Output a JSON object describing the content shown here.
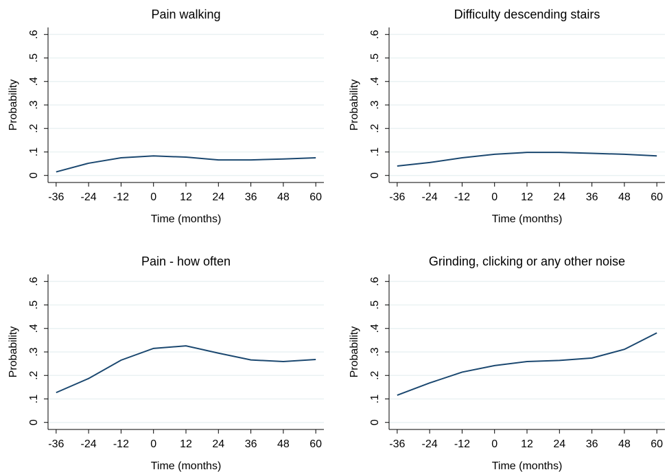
{
  "chart_data": [
    {
      "type": "line",
      "title": "Pain walking",
      "xlabel": "Time (months)",
      "ylabel": "Probability",
      "x": [
        -36,
        -24,
        -12,
        0,
        12,
        24,
        36,
        48,
        60
      ],
      "values": [
        0.015,
        0.052,
        0.075,
        0.083,
        0.078,
        0.066,
        0.066,
        0.07,
        0.075
      ],
      "color": "#1a476f",
      "grid": true,
      "xlim": [
        -39,
        63
      ],
      "xticks": [
        -36,
        -24,
        -12,
        0,
        12,
        24,
        36,
        48,
        60
      ],
      "ylim": [
        -0.03,
        0.63
      ],
      "yticks": [
        0,
        {
          "value": 0.1,
          "label": ".1"
        },
        {
          "value": 0.2,
          "label": ".2"
        },
        {
          "value": 0.3,
          "label": ".3"
        },
        {
          "value": 0.4,
          "label": ".4"
        },
        {
          "value": 0.5,
          "label": ".5"
        },
        {
          "value": 0.6,
          "label": ".6"
        }
      ]
    },
    {
      "type": "line",
      "title": "Difficulty descending stairs",
      "xlabel": "Time (months)",
      "ylabel": "Probability",
      "x": [
        -36,
        -24,
        -12,
        0,
        12,
        24,
        36,
        48,
        60
      ],
      "values": [
        0.04,
        0.055,
        0.075,
        0.09,
        0.098,
        0.098,
        0.094,
        0.09,
        0.083
      ],
      "color": "#1a476f",
      "grid": true,
      "xlim": [
        -39,
        63
      ],
      "xticks": [
        -36,
        -24,
        -12,
        0,
        12,
        24,
        36,
        48,
        60
      ],
      "ylim": [
        -0.03,
        0.63
      ],
      "yticks": [
        0,
        {
          "value": 0.1,
          "label": ".1"
        },
        {
          "value": 0.2,
          "label": ".2"
        },
        {
          "value": 0.3,
          "label": ".3"
        },
        {
          "value": 0.4,
          "label": ".4"
        },
        {
          "value": 0.5,
          "label": ".5"
        },
        {
          "value": 0.6,
          "label": ".6"
        }
      ]
    },
    {
      "type": "line",
      "title": "Pain - how often",
      "xlabel": "Time (months)",
      "ylabel": "Probability",
      "x": [
        -36,
        -24,
        -12,
        0,
        12,
        24,
        36,
        48,
        60
      ],
      "values": [
        0.127,
        0.187,
        0.265,
        0.315,
        0.326,
        0.295,
        0.266,
        0.259,
        0.268
      ],
      "color": "#1a476f",
      "grid": true,
      "xlim": [
        -39,
        63
      ],
      "xticks": [
        -36,
        -24,
        -12,
        0,
        12,
        24,
        36,
        48,
        60
      ],
      "ylim": [
        -0.03,
        0.63
      ],
      "yticks": [
        0,
        {
          "value": 0.1,
          "label": ".1"
        },
        {
          "value": 0.2,
          "label": ".2"
        },
        {
          "value": 0.3,
          "label": ".3"
        },
        {
          "value": 0.4,
          "label": ".4"
        },
        {
          "value": 0.5,
          "label": ".5"
        },
        {
          "value": 0.6,
          "label": ".6"
        }
      ]
    },
    {
      "type": "line",
      "title": "Grinding, clicking or any other noise",
      "xlabel": "Time (months)",
      "ylabel": "Probability",
      "x": [
        -36,
        -24,
        -12,
        0,
        12,
        24,
        36,
        48,
        60
      ],
      "values": [
        0.116,
        0.168,
        0.214,
        0.242,
        0.259,
        0.264,
        0.274,
        0.311,
        0.381
      ],
      "color": "#1a476f",
      "grid": true,
      "xlim": [
        -39,
        63
      ],
      "xticks": [
        -36,
        -24,
        -12,
        0,
        12,
        24,
        36,
        48,
        60
      ],
      "ylim": [
        -0.03,
        0.63
      ],
      "yticks": [
        0,
        {
          "value": 0.1,
          "label": ".1"
        },
        {
          "value": 0.2,
          "label": ".2"
        },
        {
          "value": 0.3,
          "label": ".3"
        },
        {
          "value": 0.4,
          "label": ".4"
        },
        {
          "value": 0.5,
          "label": ".5"
        },
        {
          "value": 0.6,
          "label": ".6"
        }
      ]
    }
  ]
}
